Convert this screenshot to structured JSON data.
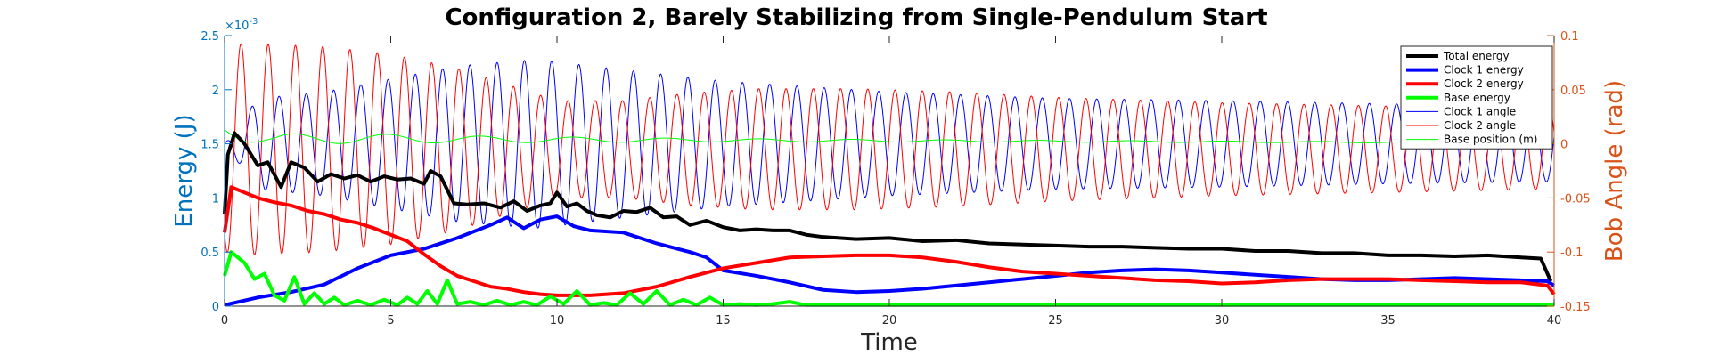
{
  "chart_data": {
    "type": "line",
    "title": "Configuration 2, Barely Stabilizing from Single-Pendulum Start",
    "xlabel": "Time",
    "ylabel_left": "Energy (J)",
    "ylabel_right": "Bob Angle (rad)",
    "left_exponent": "×10",
    "left_exponent_power": "-3",
    "xlim": [
      0,
      40
    ],
    "ylim_left": [
      0,
      2.5
    ],
    "ylim_right": [
      -0.15,
      0.1
    ],
    "grid": false,
    "legend_position": "top-right",
    "x_ticks": [
      "0",
      "5",
      "10",
      "15",
      "20",
      "25",
      "30",
      "35",
      "40"
    ],
    "y_left_ticks": [
      "0",
      "0.5",
      "1",
      "1.5",
      "2",
      "2.5"
    ],
    "y_right_ticks": [
      "-0.15",
      "-0.1",
      "-0.05",
      "0",
      "0.05",
      "0.1"
    ],
    "colors": {
      "left_axis": "#0072BD",
      "right_axis": "#D95319",
      "total": "#000000",
      "clock1": "#0000FF",
      "clock2": "#FF0000",
      "base": "#00FF00"
    },
    "series": [
      {
        "name": "Total energy",
        "axis": "left",
        "color": "#000000",
        "width": 4,
        "x": [
          0,
          0.1,
          0.3,
          0.6,
          1.0,
          1.3,
          1.7,
          2.0,
          2.4,
          2.8,
          3.2,
          3.6,
          4.0,
          4.4,
          4.8,
          5.2,
          5.6,
          6.0,
          6.2,
          6.5,
          6.9,
          7.3,
          7.8,
          8.3,
          8.7,
          9.1,
          9.5,
          9.8,
          10.0,
          10.3,
          10.6,
          10.9,
          11.2,
          11.6,
          12.0,
          12.4,
          12.8,
          13.2,
          13.6,
          14.0,
          14.5,
          15.0,
          15.5,
          16.0,
          16.5,
          17.0,
          17.5,
          18.0,
          19.0,
          20.0,
          21.0,
          22.0,
          23.0,
          24.0,
          25.0,
          26.0,
          27.0,
          28.0,
          29.0,
          30.0,
          31.0,
          32.0,
          33.0,
          34.0,
          35.0,
          36.0,
          37.0,
          38.0,
          39.0,
          39.6,
          39.9
        ],
        "y": [
          0.00085,
          0.0014,
          0.0016,
          0.0015,
          0.0013,
          0.00133,
          0.0011,
          0.00133,
          0.00128,
          0.00115,
          0.00122,
          0.00118,
          0.00121,
          0.00115,
          0.0012,
          0.00117,
          0.00118,
          0.00113,
          0.00125,
          0.0012,
          0.00095,
          0.00094,
          0.00095,
          0.00091,
          0.00097,
          0.00088,
          0.00093,
          0.00095,
          0.00105,
          0.00092,
          0.00095,
          0.00088,
          0.00084,
          0.00082,
          0.00088,
          0.00087,
          0.00091,
          0.00082,
          0.00083,
          0.00075,
          0.00079,
          0.00073,
          0.0007,
          0.00071,
          0.0007,
          0.0007,
          0.00066,
          0.00064,
          0.00062,
          0.00063,
          0.0006,
          0.00061,
          0.00058,
          0.00057,
          0.00056,
          0.00055,
          0.00055,
          0.00054,
          0.00053,
          0.00053,
          0.00051,
          0.00051,
          0.00049,
          0.00049,
          0.00047,
          0.00047,
          0.00046,
          0.00047,
          0.00045,
          0.00044,
          0.00023
        ]
      },
      {
        "name": "Clock 1 energy",
        "axis": "left",
        "color": "#0000FF",
        "width": 4,
        "x": [
          0,
          1,
          2,
          3,
          4,
          5,
          6,
          7,
          8,
          8.5,
          9,
          9.5,
          10,
          10.5,
          11,
          12,
          13,
          14,
          14.5,
          15,
          16,
          17,
          18,
          19,
          20,
          21,
          22,
          23,
          24,
          25,
          26,
          27,
          28,
          29,
          30,
          31,
          32,
          33,
          34,
          35,
          36,
          37,
          38,
          39,
          39.8,
          40
        ],
        "y": [
          1e-05,
          8e-05,
          0.00013,
          0.0002,
          0.00035,
          0.00047,
          0.00053,
          0.00063,
          0.00075,
          0.00082,
          0.00072,
          0.0008,
          0.00083,
          0.00074,
          0.0007,
          0.00068,
          0.00058,
          0.0005,
          0.00045,
          0.00033,
          0.00028,
          0.00022,
          0.00015,
          0.00013,
          0.00014,
          0.00016,
          0.00019,
          0.00022,
          0.00025,
          0.00028,
          0.00031,
          0.00033,
          0.00034,
          0.00033,
          0.00031,
          0.00029,
          0.00027,
          0.00025,
          0.00024,
          0.00024,
          0.00025,
          0.00026,
          0.00025,
          0.00024,
          0.00023,
          0.00019
        ]
      },
      {
        "name": "Clock 2 energy",
        "axis": "left",
        "color": "#FF0000",
        "width": 4,
        "x": [
          0,
          0.2,
          0.6,
          1,
          1.5,
          2,
          2.5,
          3,
          3.5,
          4,
          4.5,
          5,
          5.5,
          6,
          6.5,
          7,
          7.5,
          8,
          8.5,
          9,
          9.5,
          10,
          11,
          12,
          13,
          14,
          15,
          16,
          17,
          18,
          19,
          20,
          21,
          22,
          23,
          24,
          25,
          26,
          27,
          28,
          29,
          30,
          31,
          32,
          33,
          34,
          35,
          36,
          37,
          38,
          39,
          39.8,
          40
        ],
        "y": [
          0.00068,
          0.0011,
          0.00105,
          0.001,
          0.00096,
          0.00093,
          0.00088,
          0.00085,
          0.0008,
          0.00077,
          0.00072,
          0.00066,
          0.0006,
          0.00048,
          0.00037,
          0.00028,
          0.00023,
          0.00018,
          0.00016,
          0.00013,
          0.00011,
          0.0001,
          0.0001,
          0.00012,
          0.00018,
          0.00027,
          0.00035,
          0.0004,
          0.00045,
          0.00046,
          0.00047,
          0.00047,
          0.00045,
          0.00041,
          0.00036,
          0.00032,
          0.0003,
          0.00028,
          0.00026,
          0.00024,
          0.00023,
          0.00021,
          0.00022,
          0.00024,
          0.00025,
          0.00025,
          0.00025,
          0.00024,
          0.00023,
          0.00022,
          0.00022,
          0.00019,
          0.00011
        ]
      },
      {
        "name": "Base energy",
        "axis": "left",
        "color": "#00FF00",
        "width": 4,
        "x": [
          0,
          0.2,
          0.6,
          0.9,
          1.2,
          1.5,
          1.8,
          2.1,
          2.4,
          2.7,
          3.0,
          3.3,
          3.6,
          4.0,
          4.4,
          4.8,
          5.2,
          5.5,
          5.8,
          6.1,
          6.4,
          6.7,
          7.0,
          7.4,
          7.8,
          8.2,
          8.6,
          9.0,
          9.4,
          9.8,
          10.2,
          10.6,
          11.0,
          11.4,
          11.8,
          12.2,
          12.6,
          13.0,
          13.4,
          13.8,
          14.2,
          14.6,
          15.0,
          15.5,
          16.0,
          16.5,
          17.0,
          17.5,
          18,
          40
        ],
        "y": [
          0.00028,
          0.0005,
          0.0004,
          0.00025,
          0.0003,
          0.0001,
          5e-05,
          0.00027,
          2e-05,
          0.00012,
          2e-05,
          8e-05,
          1e-05,
          5e-05,
          1e-05,
          6e-05,
          1e-05,
          8e-05,
          2e-05,
          0.00014,
          2e-05,
          0.00024,
          2e-05,
          4e-05,
          1e-05,
          5e-05,
          1e-05,
          4e-05,
          1e-05,
          9e-05,
          2e-05,
          0.00014,
          1e-05,
          3e-05,
          1e-05,
          0.00012,
          2e-05,
          0.00014,
          1e-05,
          6e-05,
          1e-05,
          8e-05,
          1e-05,
          2e-05,
          1e-05,
          2e-05,
          4e-05,
          1e-05,
          1e-05,
          1e-05
        ]
      },
      {
        "name": "Clock 1 angle",
        "axis": "right",
        "color": "#0000FF",
        "width": 1,
        "generator": {
          "type": "oscillation",
          "period": 0.82,
          "phase": 0.25,
          "center": 0.0,
          "amplitude_t": [
            0,
            1,
            3,
            5,
            7,
            8.5,
            9.5,
            11,
            13,
            15,
            20,
            25,
            30,
            35,
            40
          ],
          "amplitude": [
            0.0,
            0.042,
            0.048,
            0.06,
            0.072,
            0.076,
            0.078,
            0.072,
            0.065,
            0.058,
            0.048,
            0.042,
            0.04,
            0.037,
            0.035
          ]
        }
      },
      {
        "name": "Clock 2 angle",
        "axis": "right",
        "color": "#FF0000",
        "width": 1,
        "generator": {
          "type": "oscillation",
          "period": 0.82,
          "phase": 0.65,
          "center": -0.005,
          "amplitude_t": [
            0,
            0.6,
            3,
            5,
            7,
            9,
            10,
            12,
            14,
            16,
            19,
            22,
            25,
            30,
            35,
            40
          ],
          "amplitude": [
            0.095,
            0.098,
            0.095,
            0.088,
            0.075,
            0.055,
            0.045,
            0.045,
            0.052,
            0.056,
            0.056,
            0.053,
            0.048,
            0.043,
            0.04,
            0.037
          ]
        }
      },
      {
        "name": "Base position (m)",
        "axis": "right",
        "color": "#00FF00",
        "width": 1,
        "generator": {
          "type": "oscillation",
          "period": 2.8,
          "phase": 0.5,
          "center": 0.001,
          "center_t": [
            0,
            1.5,
            4,
            8,
            40
          ],
          "center_v": [
            0.013,
            0.004,
            0.005,
            0.004,
            0.001
          ],
          "amplitude_t": [
            0,
            2,
            8,
            15,
            25,
            40
          ],
          "amplitude": [
            0.008,
            0.005,
            0.003,
            0.0015,
            0.0008,
            0.0004
          ]
        }
      }
    ]
  }
}
